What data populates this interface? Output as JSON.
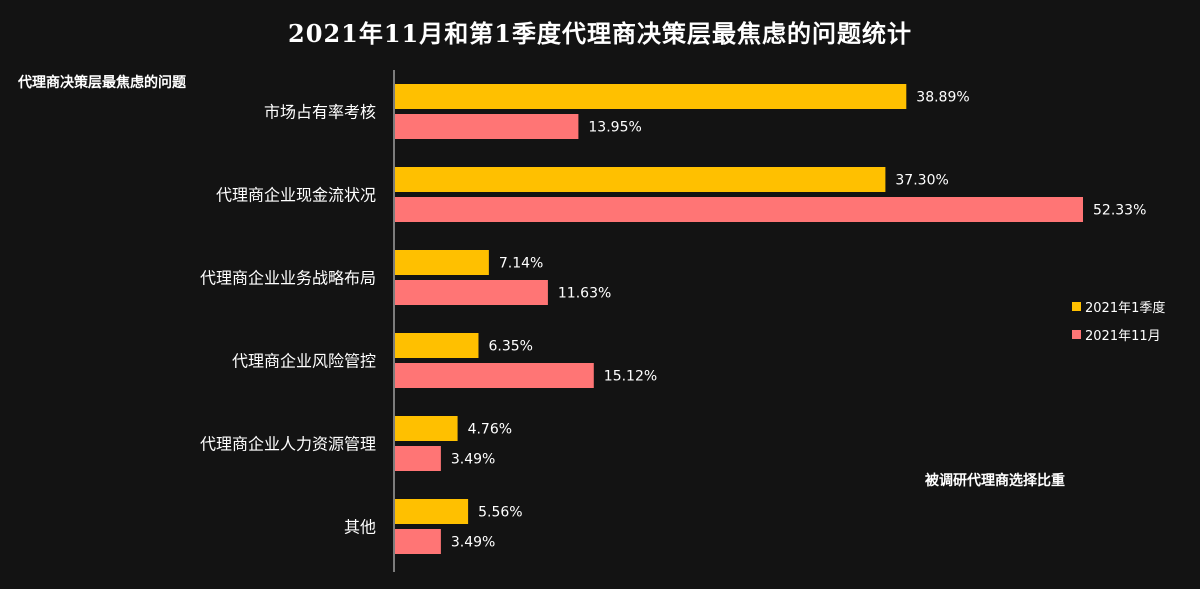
{
  "chart_data": {
    "type": "bar",
    "orientation": "horizontal",
    "title": "2021年11月和第1季度代理商决策层最焦虑的问题统计",
    "ylabel": "代理商决策层最焦虑的问题",
    "xlabel": "被调研代理商选择比重",
    "categories": [
      "市场占有率考核",
      "代理商企业现金流状况",
      "代理商企业业务战略布局",
      "代理商企业风险管控",
      "代理商企业人力资源管理",
      "其他"
    ],
    "series": [
      {
        "name": "2021年1季度",
        "color": "#FFC000",
        "values": [
          38.89,
          37.3,
          7.14,
          6.35,
          4.76,
          5.56
        ],
        "labels": [
          "38.89%",
          "37.30%",
          "7.14%",
          "6.35%",
          "4.76%",
          "5.56%"
        ]
      },
      {
        "name": "2021年11月",
        "color": "#FF7575",
        "values": [
          13.95,
          52.33,
          11.63,
          15.12,
          3.49,
          3.49
        ],
        "labels": [
          "13.95%",
          "52.33%",
          "11.63%",
          "15.12%",
          "3.49%",
          "3.49%"
        ]
      }
    ],
    "xlim": [
      0,
      55
    ],
    "grid": false,
    "legend_position": "right"
  }
}
